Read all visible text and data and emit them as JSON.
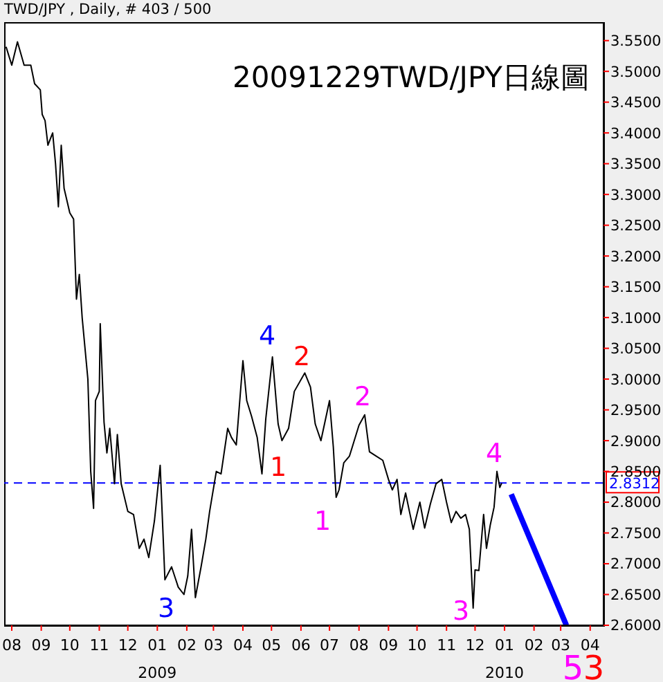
{
  "chart_data": {
    "type": "line",
    "title": "20091229TWD/JPY日線圖",
    "subtitle": "TWD/JPY , Daily, # 403 / 500",
    "series": [
      {
        "color": "#000000",
        "x": [
          "2008-07-26",
          "2008-08-01",
          "2008-08-07",
          "2008-08-14",
          "2008-08-21",
          "2008-08-25",
          "2008-08-31",
          "2008-09-02",
          "2008-09-05",
          "2008-09-08",
          "2008-09-13",
          "2008-09-16",
          "2008-09-19",
          "2008-09-22",
          "2008-09-25",
          "2008-10-01",
          "2008-10-05",
          "2008-10-08",
          "2008-10-11",
          "2008-10-14",
          "2008-10-17",
          "2008-10-20",
          "2008-10-23",
          "2008-10-26",
          "2008-10-28",
          "2008-11-01",
          "2008-11-02",
          "2008-11-06",
          "2008-11-09",
          "2008-11-12",
          "2008-11-17",
          "2008-11-20",
          "2008-11-24",
          "2008-12-01",
          "2008-12-07",
          "2008-12-13",
          "2008-12-18",
          "2008-12-23",
          "2008-12-29",
          "2009-01-04",
          "2009-01-09",
          "2009-01-16",
          "2009-01-23",
          "2009-01-29",
          "2009-02-02",
          "2009-02-06",
          "2009-02-10",
          "2009-02-16",
          "2009-02-21",
          "2009-02-25",
          "2009-03-04",
          "2009-03-09",
          "2009-03-16",
          "2009-03-20",
          "2009-03-25",
          "2009-04-01",
          "2009-04-05",
          "2009-04-10",
          "2009-04-16",
          "2009-04-21",
          "2009-04-25",
          "2009-05-02",
          "2009-05-08",
          "2009-05-12",
          "2009-05-19",
          "2009-05-25",
          "2009-06-05",
          "2009-06-11",
          "2009-06-16",
          "2009-06-22",
          "2009-07-01",
          "2009-07-05",
          "2009-07-08",
          "2009-07-11",
          "2009-07-16",
          "2009-07-22",
          "2009-07-27",
          "2009-08-01",
          "2009-08-07",
          "2009-08-12",
          "2009-08-19",
          "2009-08-26",
          "2009-09-01",
          "2009-09-05",
          "2009-09-10",
          "2009-09-14",
          "2009-09-19",
          "2009-09-23",
          "2009-09-27",
          "2009-10-04",
          "2009-10-09",
          "2009-10-15",
          "2009-10-21",
          "2009-10-27",
          "2009-11-01",
          "2009-11-06",
          "2009-11-11",
          "2009-11-16",
          "2009-11-21",
          "2009-11-25",
          "2009-11-29",
          "2009-12-01",
          "2009-12-05",
          "2009-12-10",
          "2009-12-13",
          "2009-12-17",
          "2009-12-21",
          "2009-12-24",
          "2009-12-27",
          "2009-12-29"
        ],
        "values": [
          3.54,
          3.51,
          3.548,
          3.51,
          3.51,
          3.48,
          3.47,
          3.43,
          3.42,
          3.38,
          3.4,
          3.35,
          3.28,
          3.38,
          3.31,
          3.27,
          3.26,
          3.13,
          3.17,
          3.1,
          3.05,
          3.0,
          2.85,
          2.79,
          2.965,
          2.98,
          3.09,
          2.93,
          2.88,
          2.92,
          2.83,
          2.91,
          2.83,
          2.785,
          2.78,
          2.725,
          2.74,
          2.71,
          2.77,
          2.86,
          2.674,
          2.695,
          2.662,
          2.65,
          2.68,
          2.756,
          2.645,
          2.695,
          2.74,
          2.785,
          2.85,
          2.846,
          2.92,
          2.905,
          2.893,
          3.03,
          2.965,
          2.94,
          2.905,
          2.846,
          2.935,
          3.036,
          2.927,
          2.9,
          2.92,
          2.98,
          3.01,
          2.987,
          2.927,
          2.9,
          2.965,
          2.89,
          2.808,
          2.82,
          2.864,
          2.875,
          2.9,
          2.925,
          2.942,
          2.882,
          2.875,
          2.868,
          2.837,
          2.82,
          2.837,
          2.78,
          2.815,
          2.785,
          2.756,
          2.8,
          2.758,
          2.797,
          2.83,
          2.837,
          2.8,
          2.767,
          2.785,
          2.774,
          2.78,
          2.756,
          2.628,
          2.69,
          2.689,
          2.78,
          2.725,
          2.763,
          2.792,
          2.85,
          2.824,
          2.831
        ]
      },
      {
        "color": "#0000ff",
        "x": [
          "2010-01-08",
          "2010-03-07"
        ],
        "values": [
          2.813,
          2.6
        ]
      }
    ],
    "xlim": [
      "2008-07-24",
      "2010-04-15"
    ],
    "xticks": [
      {
        "value": "2008-08-01",
        "label": "08"
      },
      {
        "value": "2008-09-01",
        "label": "09"
      },
      {
        "value": "2008-10-01",
        "label": "10"
      },
      {
        "value": "2008-11-01",
        "label": "11"
      },
      {
        "value": "2008-12-01",
        "label": "12"
      },
      {
        "value": "2009-01-01",
        "label": "01\n2009"
      },
      {
        "value": "2009-02-01",
        "label": "02"
      },
      {
        "value": "2009-03-01",
        "label": "03"
      },
      {
        "value": "2009-04-01",
        "label": "04"
      },
      {
        "value": "2009-05-01",
        "label": "05"
      },
      {
        "value": "2009-06-01",
        "label": "06"
      },
      {
        "value": "2009-07-01",
        "label": "07"
      },
      {
        "value": "2009-08-01",
        "label": "08"
      },
      {
        "value": "2009-09-01",
        "label": "09"
      },
      {
        "value": "2009-10-01",
        "label": "10"
      },
      {
        "value": "2009-11-01",
        "label": "11"
      },
      {
        "value": "2009-12-01",
        "label": "12"
      },
      {
        "value": "2010-01-01",
        "label": "01\n2010"
      },
      {
        "value": "2010-02-01",
        "label": "02"
      },
      {
        "value": "2010-03-01",
        "label": "03"
      },
      {
        "value": "2010-04-01",
        "label": "04"
      }
    ],
    "ylim": [
      2.6,
      3.58
    ],
    "yticks": [
      {
        "value": 2.6,
        "label": "2.6000"
      },
      {
        "value": 2.65,
        "label": "2.6500"
      },
      {
        "value": 2.7,
        "label": "2.7000"
      },
      {
        "value": 2.75,
        "label": "2.7500"
      },
      {
        "value": 2.8,
        "label": "2.8000"
      },
      {
        "value": 2.85,
        "label": "2.8500"
      },
      {
        "value": 2.9,
        "label": "2.9000"
      },
      {
        "value": 2.95,
        "label": "2.9500"
      },
      {
        "value": 3.0,
        "label": "3.0000"
      },
      {
        "value": 3.05,
        "label": "3.0500"
      },
      {
        "value": 3.1,
        "label": "3.1000"
      },
      {
        "value": 3.15,
        "label": "3.1500"
      },
      {
        "value": 3.2,
        "label": "3.2000"
      },
      {
        "value": 3.25,
        "label": "3.2500"
      },
      {
        "value": 3.3,
        "label": "3.3000"
      },
      {
        "value": 3.35,
        "label": "3.3500"
      },
      {
        "value": 3.4,
        "label": "3.4000"
      },
      {
        "value": 3.45,
        "label": "3.4500"
      },
      {
        "value": 3.5,
        "label": "3.5000"
      },
      {
        "value": 3.55,
        "label": "3.5500"
      }
    ],
    "ref_lines": [
      {
        "axis": "y",
        "value": 2.8312,
        "label": "2.8312",
        "color": "#0000ff",
        "line_style": "dashed"
      }
    ],
    "annotations": [
      "3",
      "4",
      "1",
      "2",
      "1",
      "2",
      "3",
      "4",
      "5",
      "3"
    ]
  }
}
